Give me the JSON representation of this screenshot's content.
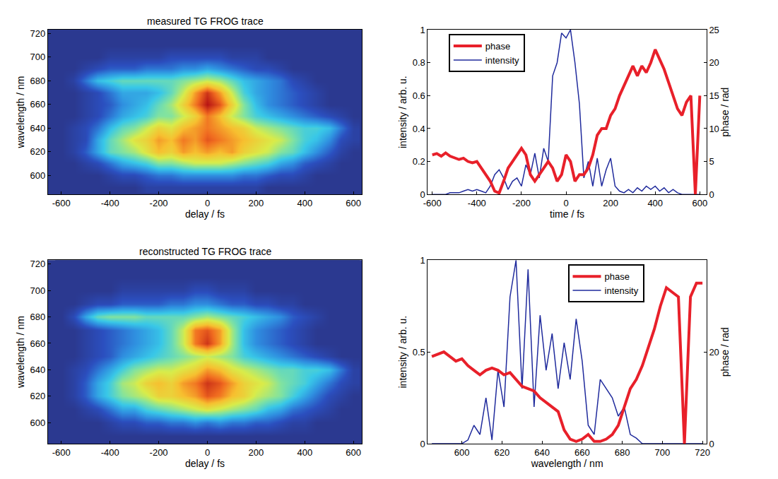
{
  "chart_data": [
    {
      "type": "heatmap",
      "title": "measured TG FROG trace",
      "x_label": "delay / fs",
      "y_label": "wavelength / nm",
      "xlim": [
        -655,
        635
      ],
      "ylim": [
        584,
        723
      ],
      "xticks": [
        -600,
        -400,
        -200,
        0,
        200,
        400,
        600
      ],
      "yticks": [
        600,
        620,
        640,
        660,
        680,
        700,
        720
      ],
      "grid": false,
      "x": [
        -600,
        -550,
        -500,
        -450,
        -400,
        -350,
        -300,
        -250,
        -200,
        -150,
        -100,
        -50,
        0,
        50,
        100,
        150,
        200,
        250,
        300,
        350,
        400,
        450,
        500,
        550,
        600
      ],
      "y": [
        590,
        600,
        610,
        620,
        630,
        640,
        650,
        660,
        670,
        680,
        690,
        700,
        710,
        720
      ],
      "zlim": [
        0,
        1
      ],
      "z": [
        [
          0,
          0,
          0,
          0,
          0,
          0,
          0,
          0.05,
          0.05,
          0.05,
          0.05,
          0.05,
          0.05,
          0.05,
          0.05,
          0.05,
          0.05,
          0,
          0,
          0,
          0,
          0,
          0,
          0,
          0
        ],
        [
          0,
          0,
          0,
          0,
          0.05,
          0.1,
          0.1,
          0.15,
          0.2,
          0.2,
          0.25,
          0.25,
          0.25,
          0.25,
          0.25,
          0.2,
          0.2,
          0.15,
          0.1,
          0.1,
          0.05,
          0,
          0,
          0,
          0
        ],
        [
          0,
          0,
          0.05,
          0.1,
          0.2,
          0.3,
          0.35,
          0.4,
          0.5,
          0.5,
          0.55,
          0.6,
          0.6,
          0.6,
          0.55,
          0.5,
          0.45,
          0.4,
          0.3,
          0.25,
          0.15,
          0.1,
          0.05,
          0,
          0
        ],
        [
          0,
          0.05,
          0.15,
          0.3,
          0.45,
          0.5,
          0.55,
          0.65,
          0.75,
          0.7,
          0.8,
          0.75,
          0.8,
          0.75,
          0.8,
          0.7,
          0.65,
          0.6,
          0.5,
          0.45,
          0.35,
          0.25,
          0.15,
          0.05,
          0
        ],
        [
          0,
          0.05,
          0.1,
          0.3,
          0.45,
          0.55,
          0.65,
          0.7,
          0.8,
          0.75,
          0.85,
          0.8,
          0.9,
          0.85,
          0.8,
          0.75,
          0.7,
          0.65,
          0.6,
          0.5,
          0.4,
          0.35,
          0.25,
          0.1,
          0.05
        ],
        [
          0,
          0.05,
          0.1,
          0.2,
          0.35,
          0.45,
          0.5,
          0.6,
          0.7,
          0.65,
          0.75,
          0.8,
          0.85,
          0.8,
          0.75,
          0.7,
          0.6,
          0.55,
          0.5,
          0.45,
          0.4,
          0.4,
          0.35,
          0.2,
          0.05
        ],
        [
          0,
          0,
          0.05,
          0.1,
          0.2,
          0.3,
          0.35,
          0.4,
          0.5,
          0.5,
          0.6,
          0.7,
          0.85,
          0.75,
          0.6,
          0.5,
          0.4,
          0.35,
          0.3,
          0.25,
          0.2,
          0.15,
          0.1,
          0.05,
          0
        ],
        [
          0,
          0,
          0.05,
          0.1,
          0.15,
          0.25,
          0.3,
          0.35,
          0.45,
          0.55,
          0.7,
          0.85,
          1.0,
          0.9,
          0.7,
          0.5,
          0.35,
          0.25,
          0.2,
          0.15,
          0.1,
          0.05,
          0,
          0,
          0
        ],
        [
          0,
          0,
          0.05,
          0.1,
          0.2,
          0.3,
          0.3,
          0.3,
          0.35,
          0.45,
          0.6,
          0.8,
          0.95,
          0.8,
          0.6,
          0.4,
          0.3,
          0.25,
          0.2,
          0.15,
          0.1,
          0.05,
          0,
          0,
          0
        ],
        [
          0,
          0.05,
          0.2,
          0.35,
          0.4,
          0.45,
          0.45,
          0.45,
          0.45,
          0.45,
          0.5,
          0.55,
          0.6,
          0.55,
          0.45,
          0.35,
          0.3,
          0.25,
          0.2,
          0.1,
          0.05,
          0,
          0,
          0,
          0
        ],
        [
          0,
          0,
          0.05,
          0.1,
          0.15,
          0.15,
          0.15,
          0.2,
          0.2,
          0.2,
          0.25,
          0.25,
          0.3,
          0.25,
          0.2,
          0.15,
          0.1,
          0.1,
          0.05,
          0,
          0,
          0,
          0,
          0,
          0
        ],
        [
          0,
          0,
          0,
          0,
          0.05,
          0.05,
          0.05,
          0.05,
          0.05,
          0.1,
          0.1,
          0.1,
          0.1,
          0.1,
          0.05,
          0.05,
          0.05,
          0,
          0,
          0,
          0,
          0,
          0,
          0,
          0
        ],
        [
          0,
          0,
          0,
          0,
          0,
          0,
          0,
          0,
          0,
          0,
          0,
          0,
          0,
          0,
          0,
          0,
          0,
          0,
          0,
          0,
          0,
          0,
          0,
          0,
          0
        ],
        [
          0,
          0,
          0,
          0,
          0,
          0,
          0,
          0,
          0,
          0,
          0,
          0,
          0,
          0,
          0,
          0,
          0,
          0,
          0,
          0,
          0,
          0,
          0,
          0,
          0
        ]
      ]
    },
    {
      "type": "heatmap",
      "title": "reconstructed TG FROG trace",
      "x_label": "delay / fs",
      "y_label": "wavelength / nm",
      "xlim": [
        -655,
        635
      ],
      "ylim": [
        584,
        723
      ],
      "xticks": [
        -600,
        -400,
        -200,
        0,
        200,
        400,
        600
      ],
      "yticks": [
        600,
        620,
        640,
        660,
        680,
        700,
        720
      ],
      "grid": false,
      "x": [
        -600,
        -550,
        -500,
        -450,
        -400,
        -350,
        -300,
        -250,
        -200,
        -150,
        -100,
        -50,
        0,
        50,
        100,
        150,
        200,
        250,
        300,
        350,
        400,
        450,
        500,
        550,
        600
      ],
      "y": [
        590,
        600,
        610,
        620,
        630,
        640,
        650,
        660,
        670,
        680,
        690,
        700,
        710,
        720
      ],
      "zlim": [
        0,
        1
      ],
      "z": [
        [
          0,
          0,
          0,
          0,
          0,
          0,
          0,
          0,
          0,
          0,
          0,
          0,
          0,
          0,
          0,
          0,
          0,
          0,
          0,
          0,
          0,
          0,
          0,
          0,
          0
        ],
        [
          0,
          0,
          0,
          0,
          0.05,
          0.1,
          0.1,
          0.15,
          0.15,
          0.2,
          0.2,
          0.25,
          0.2,
          0.25,
          0.2,
          0.2,
          0.15,
          0.15,
          0.1,
          0.05,
          0.05,
          0,
          0,
          0,
          0
        ],
        [
          0,
          0,
          0.05,
          0.1,
          0.2,
          0.3,
          0.3,
          0.4,
          0.45,
          0.5,
          0.55,
          0.6,
          0.65,
          0.6,
          0.55,
          0.5,
          0.45,
          0.35,
          0.3,
          0.2,
          0.15,
          0.1,
          0.05,
          0,
          0
        ],
        [
          0,
          0.05,
          0.15,
          0.3,
          0.4,
          0.5,
          0.55,
          0.6,
          0.7,
          0.7,
          0.75,
          0.8,
          0.9,
          0.85,
          0.75,
          0.7,
          0.6,
          0.55,
          0.5,
          0.4,
          0.3,
          0.2,
          0.1,
          0.05,
          0
        ],
        [
          0,
          0.05,
          0.15,
          0.3,
          0.4,
          0.55,
          0.6,
          0.7,
          0.75,
          0.7,
          0.8,
          0.85,
          0.95,
          0.9,
          0.8,
          0.7,
          0.65,
          0.6,
          0.5,
          0.45,
          0.4,
          0.3,
          0.2,
          0.1,
          0.05
        ],
        [
          0,
          0.05,
          0.1,
          0.2,
          0.3,
          0.4,
          0.5,
          0.55,
          0.6,
          0.6,
          0.65,
          0.7,
          0.8,
          0.75,
          0.65,
          0.6,
          0.55,
          0.5,
          0.45,
          0.45,
          0.4,
          0.4,
          0.35,
          0.2,
          0.05
        ],
        [
          0,
          0,
          0.05,
          0.1,
          0.15,
          0.25,
          0.3,
          0.35,
          0.4,
          0.45,
          0.5,
          0.55,
          0.6,
          0.55,
          0.5,
          0.4,
          0.35,
          0.3,
          0.25,
          0.2,
          0.15,
          0.1,
          0.05,
          0,
          0
        ],
        [
          0,
          0,
          0.05,
          0.1,
          0.15,
          0.2,
          0.25,
          0.3,
          0.35,
          0.45,
          0.6,
          0.85,
          0.95,
          0.8,
          0.55,
          0.35,
          0.25,
          0.2,
          0.15,
          0.1,
          0.05,
          0,
          0,
          0,
          0
        ],
        [
          0,
          0,
          0.05,
          0.1,
          0.15,
          0.2,
          0.25,
          0.3,
          0.35,
          0.45,
          0.6,
          0.85,
          0.9,
          0.8,
          0.55,
          0.35,
          0.25,
          0.2,
          0.15,
          0.1,
          0.05,
          0,
          0,
          0,
          0
        ],
        [
          0,
          0.1,
          0.3,
          0.45,
          0.5,
          0.5,
          0.5,
          0.45,
          0.45,
          0.45,
          0.45,
          0.5,
          0.55,
          0.5,
          0.45,
          0.4,
          0.35,
          0.3,
          0.25,
          0.15,
          0.1,
          0.05,
          0,
          0,
          0
        ],
        [
          0,
          0,
          0.05,
          0.1,
          0.1,
          0.15,
          0.15,
          0.15,
          0.15,
          0.2,
          0.2,
          0.25,
          0.25,
          0.2,
          0.15,
          0.15,
          0.1,
          0.1,
          0.05,
          0.05,
          0,
          0,
          0,
          0,
          0
        ],
        [
          0,
          0,
          0,
          0,
          0,
          0.05,
          0.05,
          0.05,
          0.05,
          0.05,
          0.05,
          0.1,
          0.1,
          0.05,
          0.05,
          0.05,
          0,
          0,
          0,
          0,
          0,
          0,
          0,
          0,
          0
        ],
        [
          0,
          0,
          0,
          0,
          0,
          0,
          0,
          0,
          0,
          0,
          0,
          0,
          0,
          0,
          0,
          0,
          0,
          0,
          0,
          0,
          0,
          0,
          0,
          0,
          0
        ],
        [
          0,
          0,
          0,
          0,
          0,
          0,
          0,
          0,
          0,
          0,
          0,
          0,
          0,
          0,
          0,
          0,
          0,
          0,
          0,
          0,
          0,
          0,
          0,
          0,
          0
        ]
      ]
    },
    {
      "type": "line",
      "x_label": "time / fs",
      "y_label": "intensity / arb. u.",
      "y2_label": "phase / rad",
      "xlim": [
        -620,
        630
      ],
      "ylim": [
        0,
        1
      ],
      "y2lim": [
        0,
        25
      ],
      "xticks": [
        -600,
        -400,
        -200,
        0,
        200,
        400,
        600
      ],
      "yticks": [
        0,
        0.2,
        0.4,
        0.6,
        0.8,
        1
      ],
      "y2ticks": [
        0,
        5,
        10,
        15,
        20,
        25
      ],
      "grid": false,
      "legend": "upper left",
      "x": [
        -600,
        -580,
        -560,
        -540,
        -520,
        -500,
        -480,
        -460,
        -440,
        -420,
        -400,
        -380,
        -360,
        -340,
        -320,
        -300,
        -280,
        -260,
        -240,
        -220,
        -200,
        -180,
        -160,
        -140,
        -120,
        -100,
        -80,
        -60,
        -40,
        -20,
        0,
        20,
        40,
        60,
        80,
        100,
        120,
        140,
        160,
        180,
        200,
        220,
        240,
        260,
        280,
        300,
        320,
        340,
        360,
        380,
        400,
        420,
        440,
        460,
        480,
        500,
        520,
        540,
        560,
        580,
        600
      ],
      "series": [
        {
          "name": "phase",
          "color": "#e8202a",
          "axis": "y2",
          "values": [
            6,
            6.2,
            5.8,
            6.3,
            5.8,
            5.5,
            5.3,
            5.5,
            5,
            4.8,
            5,
            4,
            3,
            2,
            0.5,
            0.2,
            2,
            4,
            5,
            6,
            7,
            6,
            3,
            2,
            3,
            4,
            5,
            4,
            2,
            3,
            6,
            5,
            2,
            3,
            3,
            4,
            6,
            9,
            10,
            10,
            12,
            13,
            15,
            16.5,
            18,
            19.5,
            18,
            19.5,
            18.5,
            20,
            22,
            20.5,
            19,
            17,
            15,
            13,
            12,
            14,
            15,
            0,
            15
          ]
        },
        {
          "name": "intensity",
          "color": "#1f2a9c",
          "axis": "y",
          "values": [
            0,
            0,
            0,
            0,
            0.01,
            0.01,
            0.01,
            0.02,
            0.03,
            0.02,
            0.03,
            0.02,
            0.01,
            0.05,
            0.12,
            0.15,
            0.1,
            0.03,
            0.08,
            0.1,
            0.05,
            0.18,
            0.12,
            0.25,
            0.1,
            0.28,
            0.2,
            0.72,
            0.8,
            0.98,
            0.95,
            1.0,
            0.8,
            0.55,
            0.1,
            0.2,
            0.05,
            0.22,
            0.05,
            0.15,
            0.22,
            0.05,
            0.02,
            0.01,
            0.03,
            0.01,
            0.04,
            0.02,
            0.05,
            0.03,
            0.05,
            0.02,
            0.04,
            0.01,
            0.03,
            0.01,
            0,
            0,
            0,
            0,
            0
          ]
        }
      ]
    },
    {
      "type": "line",
      "x_label": "wavelength / nm",
      "y_label": "intensity / arb. u.",
      "y2_label": "phase / rad",
      "xlim": [
        583,
        722
      ],
      "ylim": [
        0,
        1
      ],
      "y2lim": [
        0,
        40
      ],
      "xticks": [
        600,
        620,
        640,
        660,
        680,
        700,
        720
      ],
      "yticks": [
        0,
        0.5,
        1
      ],
      "y2ticks": [
        0,
        20
      ],
      "grid": false,
      "legend": "upper right",
      "x": [
        585,
        588,
        591,
        594,
        597,
        600,
        603,
        606,
        609,
        612,
        615,
        618,
        621,
        624,
        627,
        630,
        633,
        636,
        639,
        642,
        645,
        648,
        651,
        654,
        657,
        660,
        663,
        666,
        669,
        672,
        675,
        678,
        681,
        684,
        687,
        690,
        693,
        696,
        699,
        702,
        705,
        708,
        711,
        714,
        717,
        720
      ],
      "series": [
        {
          "name": "phase",
          "color": "#e8202a",
          "axis": "y2",
          "values": [
            19,
            19.5,
            20,
            19,
            18,
            18.5,
            17,
            16,
            15,
            16,
            16.5,
            16,
            15,
            15.5,
            14,
            12.5,
            12,
            11.5,
            10,
            9,
            8,
            7,
            3,
            1,
            0.5,
            1,
            2,
            0.5,
            0.5,
            1,
            2,
            4,
            8,
            12,
            14,
            17,
            21,
            25,
            30,
            34,
            33,
            32,
            0,
            32,
            35,
            35
          ]
        },
        {
          "name": "intensity",
          "color": "#1f2a9c",
          "axis": "y",
          "values": [
            0,
            0,
            0,
            0,
            0,
            0,
            0.02,
            0.1,
            0.05,
            0.25,
            0.02,
            0.4,
            0.2,
            0.8,
            1.0,
            0.3,
            0.95,
            0.2,
            0.7,
            0.4,
            0.6,
            0.3,
            0.55,
            0.35,
            0.68,
            0.45,
            0.1,
            0.05,
            0.35,
            0.3,
            0.25,
            0.15,
            0.2,
            0.05,
            0.03,
            0,
            0,
            0,
            0,
            0,
            0,
            0,
            0,
            0,
            0,
            0
          ]
        }
      ]
    }
  ]
}
